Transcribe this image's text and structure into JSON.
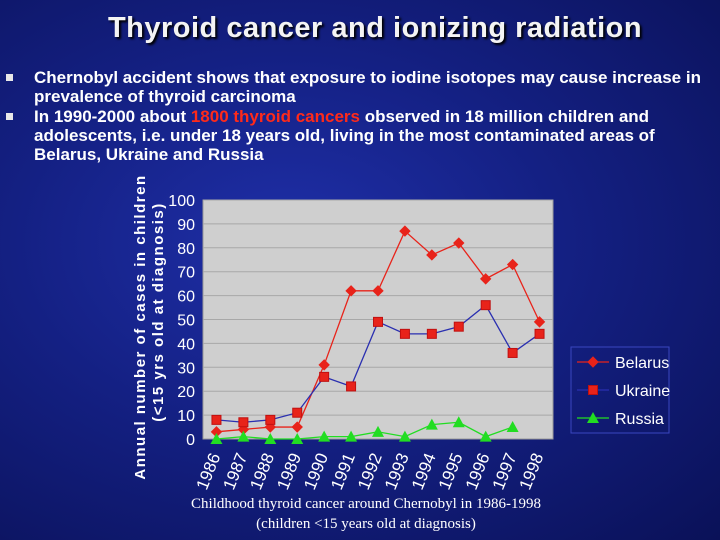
{
  "title": "Thyroid cancer and ionizing radiation",
  "bullets": [
    {
      "pre": "Chernobyl accident shows that exposure to iodine isotopes may cause increase in prevalence of thyroid carcinoma",
      "highlight": "",
      "post": ""
    },
    {
      "pre": "In 1990-2000 about ",
      "highlight": "1800 thyroid cancers",
      "post": " observed in 18 million children and adolescents, i.e. under 18 years old, living in the most contaminated areas of Belarus, Ukraine and Russia"
    }
  ],
  "caption": {
    "line1": "Childhood thyroid cancer around Chernobyl in 1986-1998",
    "line2": "(children <15 years old at diagnosis)"
  },
  "colors": {
    "belarus": "#e8231a",
    "ukraine": "#2a2fb0",
    "russia": "#22dd22",
    "plot_bg": "#cfcfcf"
  },
  "chart_data": {
    "type": "line",
    "title": "Childhood thyroid cancer around Chernobyl in 1986-1998",
    "xlabel": "",
    "ylabel": "Annual number of cases in children (<15 yrs old at diagnosis)",
    "ylim": [
      0,
      100
    ],
    "yticks": [
      0,
      10,
      20,
      30,
      40,
      50,
      60,
      70,
      80,
      90,
      100
    ],
    "categories": [
      "1986",
      "1987",
      "1988",
      "1989",
      "1990",
      "1991",
      "1992",
      "1993",
      "1994",
      "1995",
      "1996",
      "1997",
      "1998"
    ],
    "series": [
      {
        "name": "Belarus",
        "marker": "diamond",
        "values": [
          3,
          4,
          5,
          5,
          31,
          62,
          62,
          87,
          77,
          82,
          67,
          73,
          49
        ]
      },
      {
        "name": "Ukraine",
        "marker": "square",
        "values": [
          8,
          7,
          8,
          11,
          26,
          22,
          49,
          44,
          44,
          47,
          56,
          36,
          44
        ]
      },
      {
        "name": "Russia",
        "marker": "triangle",
        "values": [
          0,
          1,
          0,
          0,
          1,
          1,
          3,
          1,
          6,
          7,
          1,
          5,
          null
        ]
      }
    ],
    "legend": "right",
    "grid": true
  }
}
